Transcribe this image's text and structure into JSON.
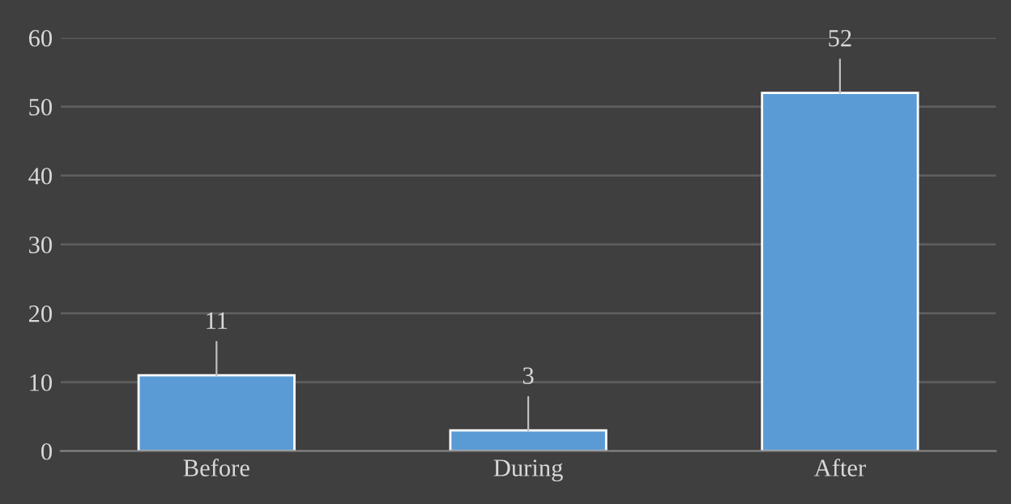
{
  "chart_data": {
    "type": "bar",
    "categories": [
      "Before",
      "During",
      "After"
    ],
    "values": [
      11,
      3,
      52
    ],
    "color": "#5b9bd5",
    "ylim": [
      0,
      60
    ],
    "yticks": [
      0,
      10,
      20,
      30,
      40,
      50,
      60
    ],
    "grid": "y",
    "data_labels": true
  }
}
